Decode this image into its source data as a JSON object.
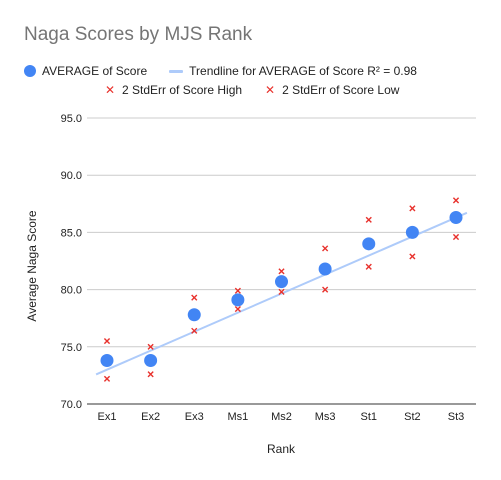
{
  "chart_data": {
    "type": "scatter",
    "title": "Naga Scores by MJS Rank",
    "xlabel": "Rank",
    "ylabel": "Average Naga Score",
    "categories": [
      "Ex1",
      "Ex2",
      "Ex3",
      "Ms1",
      "Ms2",
      "Ms3",
      "St1",
      "St2",
      "St3"
    ],
    "ylim": [
      70,
      95
    ],
    "yticks": [
      "70.0",
      "75.0",
      "80.0",
      "85.0",
      "90.0",
      "95.0"
    ],
    "grid": true,
    "legend_position": "top",
    "series": [
      {
        "name": "AVERAGE of Score",
        "marker": "circle",
        "color": "#4285f4",
        "values": [
          73.8,
          73.8,
          77.8,
          79.1,
          80.7,
          81.8,
          84.0,
          85.0,
          86.3
        ]
      },
      {
        "name": "2 StdErr of Score High",
        "marker": "x",
        "color": "#e8312c",
        "values": [
          75.5,
          75.0,
          79.3,
          79.9,
          81.6,
          83.6,
          86.1,
          87.1,
          87.8
        ]
      },
      {
        "name": "2 StdErr of Score Low",
        "marker": "x",
        "color": "#e8312c",
        "values": [
          72.2,
          72.6,
          76.4,
          78.3,
          79.8,
          80.0,
          82.0,
          82.9,
          84.6
        ]
      }
    ],
    "trendline": {
      "name": "Trendline for AVERAGE of Score",
      "r2_label": "R² = 0.98",
      "color": "#aecbfa",
      "y_at_first": 73.0,
      "y_at_last": 86.3
    }
  }
}
